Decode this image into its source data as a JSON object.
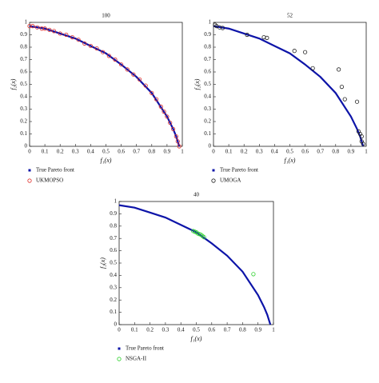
{
  "chart_data": [
    {
      "type": "scatter",
      "title": "100",
      "xlabel": "f₁(x)",
      "ylabel": "f₂(x)",
      "xlim": [
        0,
        1
      ],
      "ylim": [
        0,
        1
      ],
      "xticks": [
        0,
        0.1,
        0.2,
        0.3,
        0.4,
        0.5,
        0.6,
        0.7,
        0.8,
        0.9,
        1
      ],
      "yticks": [
        0,
        0.1,
        0.2,
        0.3,
        0.4,
        0.5,
        0.6,
        0.7,
        0.8,
        0.9,
        1
      ],
      "series": [
        {
          "name": "True Pareto front",
          "color": "#0d14a8",
          "style": "line",
          "x": [
            0,
            0.1,
            0.2,
            0.3,
            0.4,
            0.5,
            0.6,
            0.7,
            0.8,
            0.9,
            0.92,
            0.94,
            0.96,
            0.97,
            0.98
          ],
          "values": [
            0.97,
            0.95,
            0.91,
            0.87,
            0.81,
            0.75,
            0.66,
            0.56,
            0.43,
            0.24,
            0.19,
            0.14,
            0.08,
            0.04,
            0
          ]
        },
        {
          "name": "UKMOPSO",
          "color": "#e0302c",
          "style": "circle",
          "x": [
            0,
            0.02,
            0.05,
            0.08,
            0.1,
            0.13,
            0.16,
            0.2,
            0.24,
            0.28,
            0.32,
            0.36,
            0.4,
            0.44,
            0.48,
            0.52,
            0.56,
            0.6,
            0.64,
            0.68,
            0.72,
            0.76,
            0.8,
            0.83,
            0.86,
            0.88,
            0.9,
            0.92,
            0.94,
            0.96,
            0.97,
            0.98
          ],
          "values": [
            0.97,
            0.97,
            0.96,
            0.95,
            0.95,
            0.94,
            0.93,
            0.91,
            0.9,
            0.88,
            0.86,
            0.83,
            0.81,
            0.79,
            0.76,
            0.73,
            0.7,
            0.66,
            0.62,
            0.58,
            0.54,
            0.49,
            0.43,
            0.38,
            0.32,
            0.28,
            0.24,
            0.19,
            0.14,
            0.08,
            0.04,
            0
          ]
        }
      ]
    },
    {
      "type": "scatter",
      "title": "52",
      "xlabel": "f₁(x)",
      "ylabel": "f₂(x)",
      "xlim": [
        0,
        1
      ],
      "ylim": [
        0,
        1
      ],
      "xticks": [
        0,
        0.1,
        0.2,
        0.3,
        0.4,
        0.5,
        0.6,
        0.7,
        0.8,
        0.9,
        1
      ],
      "yticks": [
        0,
        0.1,
        0.2,
        0.3,
        0.4,
        0.5,
        0.6,
        0.7,
        0.8,
        0.9,
        1
      ],
      "series": [
        {
          "name": "True Pareto front",
          "color": "#0d14a8",
          "style": "line",
          "x": [
            0,
            0.1,
            0.2,
            0.3,
            0.4,
            0.5,
            0.6,
            0.7,
            0.8,
            0.9,
            0.92,
            0.94,
            0.96,
            0.97,
            0.98
          ],
          "values": [
            0.97,
            0.95,
            0.91,
            0.87,
            0.81,
            0.75,
            0.66,
            0.56,
            0.43,
            0.24,
            0.19,
            0.14,
            0.08,
            0.04,
            0
          ]
        },
        {
          "name": "UMOGA",
          "color": "#222222",
          "style": "circle",
          "x": [
            0.01,
            0.02,
            0.04,
            0.06,
            0.22,
            0.33,
            0.35,
            0.53,
            0.6,
            0.65,
            0.82,
            0.84,
            0.86,
            0.94,
            0.95,
            0.96,
            0.97,
            0.97,
            0.98
          ],
          "values": [
            0.98,
            0.97,
            0.96,
            0.955,
            0.9,
            0.88,
            0.875,
            0.77,
            0.76,
            0.63,
            0.62,
            0.48,
            0.38,
            0.36,
            0.12,
            0.1,
            0.08,
            0.04,
            0.02
          ]
        }
      ]
    },
    {
      "type": "scatter",
      "title": "40",
      "xlabel": "f₁(x)",
      "ylabel": "f₂(x)",
      "xlim": [
        0,
        1
      ],
      "ylim": [
        0,
        1
      ],
      "xticks": [
        0,
        0.1,
        0.2,
        0.3,
        0.4,
        0.5,
        0.6,
        0.7,
        0.8,
        0.9,
        1
      ],
      "yticks": [
        0,
        0.1,
        0.2,
        0.3,
        0.4,
        0.5,
        0.6,
        0.7,
        0.8,
        0.9,
        1
      ],
      "series": [
        {
          "name": "True Pareto front",
          "color": "#0d14a8",
          "style": "line",
          "x": [
            0,
            0.1,
            0.2,
            0.3,
            0.4,
            0.5,
            0.6,
            0.7,
            0.8,
            0.9,
            0.92,
            0.94,
            0.96,
            0.97,
            0.98
          ],
          "values": [
            0.97,
            0.95,
            0.91,
            0.87,
            0.81,
            0.75,
            0.66,
            0.56,
            0.43,
            0.24,
            0.19,
            0.14,
            0.08,
            0.04,
            0
          ]
        },
        {
          "name": "NSGA-II",
          "color": "#2fd22f",
          "style": "circle",
          "x": [
            0.48,
            0.49,
            0.5,
            0.51,
            0.52,
            0.53,
            0.54,
            0.55,
            0.87
          ],
          "values": [
            0.76,
            0.755,
            0.75,
            0.74,
            0.735,
            0.73,
            0.72,
            0.71,
            0.41
          ]
        }
      ]
    }
  ]
}
